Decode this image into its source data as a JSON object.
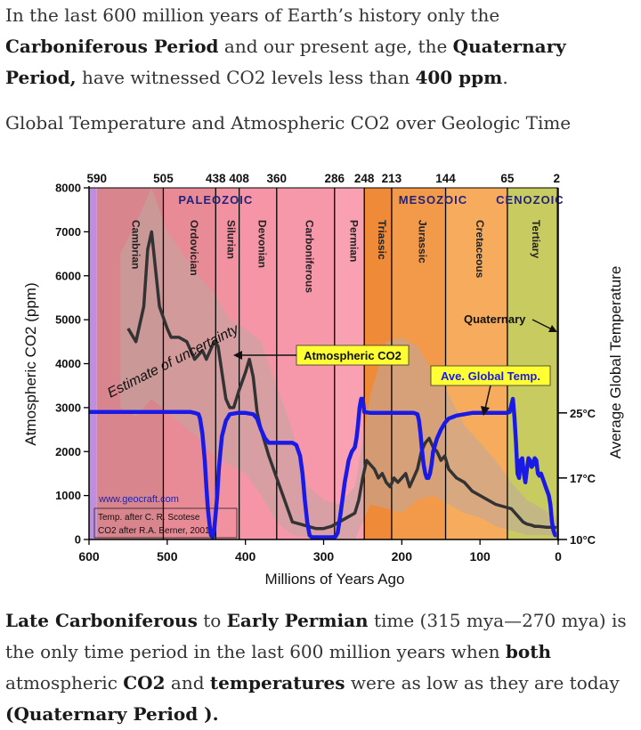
{
  "intro": {
    "t1": "In the last 600 million years of Earth’s history only the ",
    "b1": "Carboniferous Period",
    "t2": " and our present age, the ",
    "b2": "Quaternary Period,",
    "t3": " have witnessed CO2 levels less than ",
    "b3": "400 ppm",
    "t4": "."
  },
  "caption": "Global Temperature and Atmospheric CO2 over Geologic Time",
  "outro": {
    "b1": "Late Carboniferous",
    "t1": " to ",
    "b2": "Early Permian",
    "t2": " time (315 mya—270 mya) is the only time period in the last 600 million years when ",
    "b3": "both",
    "t3": " atmospheric ",
    "b4": "CO2",
    "t4": " and ",
    "b5": "temperatures",
    "t5": " were as low as they are today ",
    "b6": "(Quaternary Period ).",
    "t6": ""
  },
  "chart_data": {
    "type": "line",
    "xlabel": "Millions of Years Ago",
    "ylabel": "Atmospheric CO2 (ppm)",
    "y2label": "Average Global Temperature",
    "xlim": [
      600,
      0
    ],
    "ylim": [
      0,
      8000
    ],
    "xticks": [
      600,
      500,
      400,
      300,
      200,
      100,
      0
    ],
    "yticks": [
      0,
      1000,
      2000,
      3000,
      4000,
      5000,
      6000,
      7000,
      8000
    ],
    "y2ticks": [
      {
        "label": "25°C",
        "at": 2880
      },
      {
        "label": "17°C",
        "at": 1400
      },
      {
        "label": "10°C",
        "at": 0
      }
    ],
    "top_ticks": [
      {
        "label": "590",
        "x": 590
      },
      {
        "label": "505",
        "x": 505
      },
      {
        "label": "438",
        "x": 438
      },
      {
        "label": "408",
        "x": 408
      },
      {
        "label": "360",
        "x": 360
      },
      {
        "label": "286",
        "x": 286
      },
      {
        "label": "248",
        "x": 248
      },
      {
        "label": "213",
        "x": 213
      },
      {
        "label": "144",
        "x": 144
      },
      {
        "label": "65",
        "x": 65
      },
      {
        "label": "2",
        "x": 2
      }
    ],
    "eras": [
      {
        "label": "PALEOZOIC",
        "x": 438
      },
      {
        "label": "MESOZOIC",
        "x": 160
      },
      {
        "label": "CENOZOIC",
        "x": 36
      }
    ],
    "periods": [
      {
        "name": "Cambrian",
        "from": 590,
        "to": 505,
        "label_x": 545,
        "color": "#d9858e"
      },
      {
        "name": "Ordovician",
        "from": 505,
        "to": 438,
        "label_x": 470,
        "color": "#e88b96"
      },
      {
        "name": "Silurian",
        "from": 438,
        "to": 408,
        "label_x": 423,
        "color": "#f291a0"
      },
      {
        "name": "Devonian",
        "from": 408,
        "to": 360,
        "label_x": 383,
        "color": "#f595a6"
      },
      {
        "name": "Carboniferous",
        "from": 360,
        "to": 286,
        "label_x": 323,
        "color": "#f797aa"
      },
      {
        "name": "Permian",
        "from": 286,
        "to": 248,
        "label_x": 266,
        "color": "#f9a0b2"
      },
      {
        "name": "Triassic",
        "from": 248,
        "to": 213,
        "label_x": 230,
        "color": "#ee8a38"
      },
      {
        "name": "Jurassic",
        "from": 213,
        "to": 144,
        "label_x": 178,
        "color": "#f29a4a"
      },
      {
        "name": "Cretaceous",
        "from": 144,
        "to": 65,
        "label_x": 105,
        "color": "#f6ac5c"
      },
      {
        "name": "Tertiary",
        "from": 65,
        "to": 2,
        "label_x": 33,
        "color": "#c8cc60"
      }
    ],
    "precambrian_band": {
      "from": 600,
      "to": 590,
      "color": "#c08ee0"
    },
    "series": [
      {
        "name": "Atmospheric CO2",
        "color": "#333333",
        "x": [
          550,
          540,
          530,
          525,
          520,
          510,
          500,
          495,
          485,
          475,
          465,
          455,
          450,
          445,
          440,
          435,
          430,
          425,
          420,
          415,
          408,
          400,
          395,
          390,
          385,
          380,
          370,
          360,
          350,
          340,
          330,
          320,
          310,
          300,
          290,
          280,
          270,
          260,
          255,
          250,
          245,
          240,
          235,
          230,
          225,
          220,
          215,
          210,
          205,
          200,
          195,
          190,
          185,
          180,
          175,
          170,
          165,
          160,
          155,
          150,
          145,
          140,
          130,
          120,
          110,
          100,
          90,
          80,
          70,
          60,
          55,
          50,
          45,
          40,
          35,
          30,
          25,
          20,
          15,
          10,
          5,
          2
        ],
        "y": [
          4800,
          4500,
          5300,
          6600,
          7000,
          5300,
          4800,
          4600,
          4600,
          4500,
          4100,
          4300,
          4100,
          4300,
          4500,
          4400,
          3800,
          3200,
          3000,
          3000,
          3400,
          3800,
          4100,
          3700,
          2900,
          2500,
          1900,
          1400,
          900,
          400,
          350,
          300,
          250,
          250,
          300,
          400,
          500,
          600,
          900,
          1400,
          1800,
          1700,
          1600,
          1400,
          1500,
          1300,
          1200,
          1400,
          1300,
          1400,
          1500,
          1200,
          1400,
          1600,
          2000,
          2200,
          2300,
          2100,
          2000,
          1800,
          1900,
          1600,
          1400,
          1300,
          1100,
          1000,
          900,
          800,
          750,
          700,
          600,
          500,
          400,
          350,
          330,
          300,
          300,
          290,
          280,
          280,
          280,
          270
        ]
      },
      {
        "name": "Ave. Global Temp.",
        "color": "#1a1ae6",
        "x": [
          600,
          580,
          560,
          540,
          520,
          500,
          480,
          470,
          465,
          460,
          458,
          455,
          452,
          450,
          448,
          446,
          444,
          442,
          440,
          438,
          436,
          434,
          432,
          430,
          425,
          420,
          410,
          400,
          390,
          385,
          380,
          375,
          370,
          365,
          360,
          350,
          340,
          335,
          330,
          327,
          324,
          321,
          318,
          315,
          300,
          290,
          285,
          282,
          279,
          276,
          273,
          270,
          268,
          266,
          264,
          262,
          260,
          258,
          256,
          254,
          252,
          250,
          248,
          240,
          220,
          200,
          185,
          180,
          178,
          176,
          174,
          172,
          170,
          168,
          166,
          164,
          162,
          160,
          155,
          150,
          145,
          140,
          130,
          120,
          110,
          100,
          90,
          80,
          75,
          70,
          65,
          62,
          60,
          58,
          56,
          54,
          52,
          50,
          48,
          46,
          44,
          42,
          40,
          38,
          36,
          34,
          32,
          30,
          28,
          26,
          24,
          22,
          20,
          18,
          16,
          14,
          12,
          10,
          8,
          6,
          4,
          2
        ],
        "y": [
          2900,
          2900,
          2900,
          2900,
          2900,
          2900,
          2900,
          2900,
          2880,
          2850,
          2750,
          2400,
          1800,
          1200,
          700,
          350,
          100,
          50,
          200,
          600,
          1000,
          1600,
          2000,
          2350,
          2700,
          2850,
          2880,
          2880,
          2850,
          2750,
          2500,
          2300,
          2200,
          2200,
          2200,
          2200,
          2200,
          2150,
          1900,
          1500,
          900,
          400,
          100,
          50,
          50,
          50,
          60,
          150,
          500,
          900,
          1300,
          1600,
          1800,
          1900,
          2000,
          2050,
          2100,
          2300,
          2600,
          3000,
          3200,
          3200,
          2900,
          2880,
          2880,
          2880,
          2880,
          2850,
          2700,
          2400,
          2000,
          1700,
          1500,
          1400,
          1400,
          1500,
          1700,
          2000,
          2300,
          2500,
          2650,
          2750,
          2820,
          2850,
          2880,
          2880,
          2880,
          2880,
          2880,
          2880,
          2880,
          2900,
          3050,
          3200,
          2800,
          2200,
          1500,
          1400,
          1800,
          1850,
          1500,
          1300,
          1600,
          1850,
          1800,
          1650,
          1700,
          1850,
          1800,
          1500,
          1450,
          1500,
          1400,
          1300,
          1200,
          1100,
          1000,
          800,
          400,
          200,
          100,
          100
        ]
      }
    ],
    "uncertainty_band": {
      "color": "#c0a8a0",
      "x": [
        560,
        540,
        520,
        500,
        480,
        460,
        440,
        420,
        400,
        380,
        360,
        340,
        320,
        300,
        280,
        260,
        240,
        220,
        200,
        180,
        160,
        140,
        120,
        100,
        80,
        60,
        40,
        20,
        2
      ],
      "lower": [
        3000,
        2800,
        3200,
        2900,
        2600,
        2300,
        1900,
        1700,
        1500,
        1000,
        400,
        100,
        50,
        0,
        0,
        0,
        800,
        700,
        600,
        900,
        1000,
        800,
        600,
        500,
        300,
        200,
        100,
        100,
        100
      ],
      "upper": [
        6500,
        7200,
        8000,
        7000,
        6500,
        6000,
        5600,
        5000,
        4800,
        4500,
        3500,
        2500,
        1200,
        900,
        800,
        1200,
        3300,
        4500,
        4600,
        4400,
        3800,
        3300,
        2600,
        2200,
        1800,
        1300,
        900,
        700,
        500
      ]
    },
    "annotations": [
      {
        "text": "Estimate of uncertainty"
      },
      {
        "text": "Atmospheric CO2"
      },
      {
        "text": "Ave. Global Temp."
      },
      {
        "text": "Quaternary"
      },
      {
        "text": "www.geocraft.com"
      },
      {
        "text": "Temp. after C. R. Scotese"
      },
      {
        "text": "CO2 after R.A. Berner, 2001"
      }
    ]
  }
}
